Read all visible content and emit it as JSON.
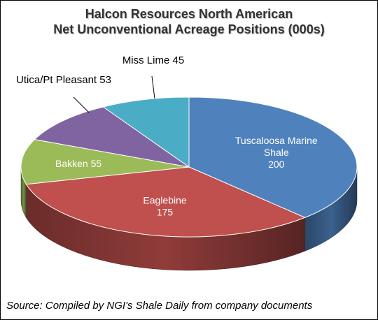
{
  "chart_data": {
    "type": "pie",
    "title": [
      "Halcon Resources North American",
      "Net Unconventional Acreage Positions (000s)"
    ],
    "slices": [
      {
        "name": "Tuscaloosa Marine Shale",
        "label_lines": [
          "Tuscaloosa Marine",
          "Shale",
          "200"
        ],
        "value": 200,
        "color": "#4F81BD",
        "label_position": "inside"
      },
      {
        "name": "Eaglebine",
        "label_lines": [
          "Eaglebine",
          "175"
        ],
        "value": 175,
        "color": "#C0504D",
        "label_position": "inside"
      },
      {
        "name": "Bakken",
        "label_lines": [
          "Bakken 55"
        ],
        "value": 55,
        "color": "#9BBB59",
        "label_position": "inside"
      },
      {
        "name": "Utica/Pt Pleasant",
        "label_lines": [
          "Utica/Pt Pleasant 53"
        ],
        "value": 53,
        "color": "#8064A2",
        "label_position": "outside"
      },
      {
        "name": "Miss Lime",
        "label_lines": [
          "Miss Lime 45"
        ],
        "value": 45,
        "color": "#4BACC6",
        "label_position": "outside"
      }
    ],
    "style": "3d-pie",
    "legend": "none"
  },
  "source": "Source:  Compiled by NGI's Shale Daily from company documents"
}
